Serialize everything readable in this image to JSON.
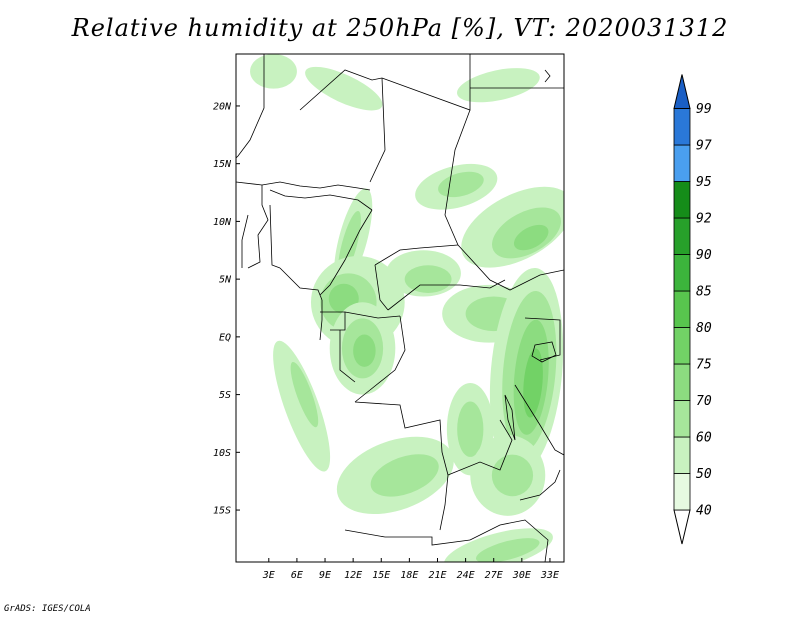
{
  "title": "Relative humidity at 250hPa [%], VT: 2020031312",
  "credit": "GrADS: IGES/COLA",
  "chart_data": {
    "type": "heatmap",
    "variable": "Relative humidity",
    "level": "250hPa",
    "units": "%",
    "valid_time": "2020031312",
    "lon_range": [
      -0.5,
      34.5
    ],
    "lat_range": [
      -19.5,
      24.5
    ],
    "xticks": [
      {
        "value": 3,
        "label": "3E"
      },
      {
        "value": 6,
        "label": "6E"
      },
      {
        "value": 9,
        "label": "9E"
      },
      {
        "value": 12,
        "label": "12E"
      },
      {
        "value": 15,
        "label": "15E"
      },
      {
        "value": 18,
        "label": "18E"
      },
      {
        "value": 21,
        "label": "21E"
      },
      {
        "value": 24,
        "label": "24E"
      },
      {
        "value": 27,
        "label": "27E"
      },
      {
        "value": 30,
        "label": "30E"
      },
      {
        "value": 33,
        "label": "33E"
      }
    ],
    "yticks": [
      {
        "value": 20,
        "label": "20N"
      },
      {
        "value": 15,
        "label": "15N"
      },
      {
        "value": 10,
        "label": "10N"
      },
      {
        "value": 5,
        "label": "5N"
      },
      {
        "value": 0,
        "label": "EQ"
      },
      {
        "value": -5,
        "label": "5S"
      },
      {
        "value": -10,
        "label": "10S"
      },
      {
        "value": -15,
        "label": "15S"
      }
    ],
    "colorbar": {
      "levels": [
        40,
        50,
        60,
        70,
        75,
        80,
        85,
        90,
        92,
        95,
        97,
        99
      ],
      "colors": [
        "#ffffff",
        "#e6fae1",
        "#c8f2c0",
        "#a6e69b",
        "#8cdc80",
        "#72d266",
        "#58c54e",
        "#3cb43c",
        "#27a02a",
        "#158c19",
        "#4a9fef",
        "#2a78d8",
        "#1a5fc5"
      ]
    },
    "fields": [
      {
        "level": 50,
        "lon": 3.5,
        "lat": 23.0,
        "rx": 2.5,
        "ry": 1.5,
        "rot": 0
      },
      {
        "level": 50,
        "lon": 11.0,
        "lat": 21.5,
        "rx": 4.5,
        "ry": 1.2,
        "rot": 25
      },
      {
        "level": 50,
        "lon": 27.5,
        "lat": 21.8,
        "rx": 4.5,
        "ry": 1.3,
        "rot": -12
      },
      {
        "level": 50,
        "lon": 23.0,
        "lat": 13.0,
        "rx": 4.5,
        "ry": 1.8,
        "rot": -15
      },
      {
        "level": 60,
        "lon": 23.5,
        "lat": 13.2,
        "rx": 2.5,
        "ry": 1.0,
        "rot": -15
      },
      {
        "level": 50,
        "lon": 29.5,
        "lat": 9.5,
        "rx": 6.5,
        "ry": 2.8,
        "rot": -28
      },
      {
        "level": 60,
        "lon": 30.5,
        "lat": 9.0,
        "rx": 4.0,
        "ry": 1.8,
        "rot": -28
      },
      {
        "level": 70,
        "lon": 31.0,
        "lat": 8.6,
        "rx": 2.0,
        "ry": 0.9,
        "rot": -28
      },
      {
        "level": 50,
        "lon": 12.0,
        "lat": 8.5,
        "rx": 1.5,
        "ry": 4.5,
        "rot": 15
      },
      {
        "level": 60,
        "lon": 11.6,
        "lat": 8.0,
        "rx": 0.8,
        "ry": 3.0,
        "rot": 15
      },
      {
        "level": 50,
        "lon": 12.5,
        "lat": 3.0,
        "rx": 5.0,
        "ry": 4.0,
        "rot": 0
      },
      {
        "level": 60,
        "lon": 11.5,
        "lat": 3.0,
        "rx": 3.0,
        "ry": 2.5,
        "rot": 0
      },
      {
        "level": 70,
        "lon": 11.0,
        "lat": 3.3,
        "rx": 1.6,
        "ry": 1.3,
        "rot": 0
      },
      {
        "level": 50,
        "lon": 19.5,
        "lat": 5.5,
        "rx": 4.0,
        "ry": 2.0,
        "rot": 0
      },
      {
        "level": 60,
        "lon": 20.0,
        "lat": 5.0,
        "rx": 2.5,
        "ry": 1.2,
        "rot": 0
      },
      {
        "level": 50,
        "lon": 13.0,
        "lat": -1.0,
        "rx": 3.5,
        "ry": 4.0,
        "rot": 0
      },
      {
        "level": 60,
        "lon": 13.0,
        "lat": -1.0,
        "rx": 2.2,
        "ry": 2.6,
        "rot": 0
      },
      {
        "level": 70,
        "lon": 13.2,
        "lat": -1.2,
        "rx": 1.2,
        "ry": 1.4,
        "rot": 0
      },
      {
        "level": 50,
        "lon": 26.5,
        "lat": 2.0,
        "rx": 5.0,
        "ry": 2.5,
        "rot": 0
      },
      {
        "level": 60,
        "lon": 27.0,
        "lat": 2.0,
        "rx": 3.0,
        "ry": 1.5,
        "rot": 0
      },
      {
        "level": 50,
        "lon": 30.5,
        "lat": -3.0,
        "rx": 3.8,
        "ry": 9.0,
        "rot": 5
      },
      {
        "level": 60,
        "lon": 30.8,
        "lat": -3.0,
        "rx": 2.8,
        "ry": 7.0,
        "rot": 5
      },
      {
        "level": 70,
        "lon": 31.0,
        "lat": -3.5,
        "rx": 1.8,
        "ry": 5.0,
        "rot": 5
      },
      {
        "level": 75,
        "lon": 31.2,
        "lat": -4.0,
        "rx": 1.0,
        "ry": 3.0,
        "rot": 5
      },
      {
        "level": 50,
        "lon": 24.5,
        "lat": -8.0,
        "rx": 2.5,
        "ry": 4.0,
        "rot": 0
      },
      {
        "level": 60,
        "lon": 24.5,
        "lat": -8.0,
        "rx": 1.4,
        "ry": 2.4,
        "rot": 0
      },
      {
        "level": 50,
        "lon": 6.5,
        "lat": -6.0,
        "rx": 1.8,
        "ry": 6.0,
        "rot": -20
      },
      {
        "level": 60,
        "lon": 6.8,
        "lat": -5.0,
        "rx": 0.8,
        "ry": 3.0,
        "rot": -20
      },
      {
        "level": 50,
        "lon": 16.5,
        "lat": -12.0,
        "rx": 6.5,
        "ry": 3.0,
        "rot": -20
      },
      {
        "level": 60,
        "lon": 17.5,
        "lat": -12.0,
        "rx": 3.8,
        "ry": 1.6,
        "rot": -20
      },
      {
        "level": 50,
        "lon": 28.5,
        "lat": -12.0,
        "rx": 4.0,
        "ry": 3.5,
        "rot": 0
      },
      {
        "level": 60,
        "lon": 29.0,
        "lat": -12.0,
        "rx": 2.2,
        "ry": 1.8,
        "rot": 0
      },
      {
        "level": 50,
        "lon": 27.5,
        "lat": -18.5,
        "rx": 6.0,
        "ry": 1.5,
        "rot": -15
      },
      {
        "level": 60,
        "lon": 28.5,
        "lat": -18.5,
        "rx": 3.5,
        "ry": 0.8,
        "rot": -15
      }
    ]
  }
}
